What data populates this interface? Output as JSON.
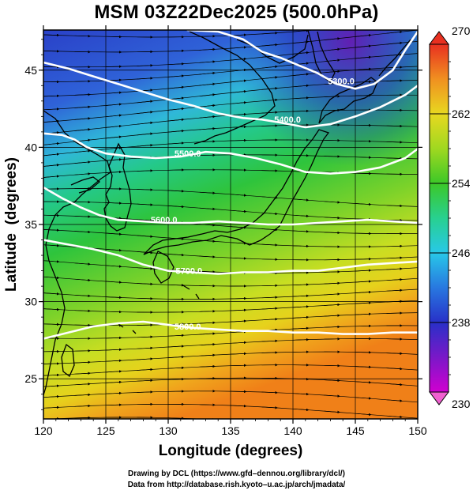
{
  "title": "MSM 03Z22Dec2025 (500.0hPa)",
  "x_axis": {
    "label": "Longitude (degrees)",
    "range": [
      120,
      150
    ],
    "ticks": [
      120,
      125,
      130,
      135,
      140,
      145,
      150
    ]
  },
  "y_axis": {
    "label": "Latitude  (degrees)",
    "range": [
      22.4,
      47.6
    ],
    "ticks": [
      25,
      30,
      35,
      40,
      45
    ]
  },
  "colorbar": {
    "min": 230,
    "max": 270,
    "tick_labels": [
      230,
      238,
      246,
      254,
      262,
      270
    ]
  },
  "contours": [
    {
      "label": "5300.0",
      "points": [
        [
          131.5,
          47.6
        ],
        [
          134,
          47.5
        ],
        [
          136,
          47
        ],
        [
          137.5,
          46.2
        ],
        [
          139,
          45.8
        ],
        [
          140.5,
          45.3
        ],
        [
          142,
          44.8
        ],
        [
          143.5,
          44.1
        ],
        [
          145,
          43.8
        ],
        [
          146.5,
          44.1
        ],
        [
          148,
          45
        ],
        [
          149,
          46.3
        ],
        [
          150,
          47.5
        ]
      ],
      "label_at": [
        142.8,
        44.3
      ]
    },
    {
      "label": "5400.0",
      "points": [
        [
          120,
          45.5
        ],
        [
          122,
          45.1
        ],
        [
          124,
          44.6
        ],
        [
          126,
          44.1
        ],
        [
          128,
          43.6
        ],
        [
          130,
          43.1
        ],
        [
          132,
          42.7
        ],
        [
          134,
          42.2
        ],
        [
          136,
          41.9
        ],
        [
          137.5,
          41.8
        ],
        [
          139,
          41.6
        ],
        [
          141,
          41.3
        ],
        [
          143,
          41.5
        ],
        [
          145,
          42
        ],
        [
          147,
          42.6
        ],
        [
          149,
          43.4
        ],
        [
          150,
          44
        ]
      ],
      "label_at": [
        138.5,
        41.8
      ]
    },
    {
      "label": "5500.0",
      "points": [
        [
          120,
          40.9
        ],
        [
          121.5,
          40.8
        ],
        [
          122.5,
          40.5
        ],
        [
          123.5,
          40
        ],
        [
          125,
          39.6
        ],
        [
          127,
          39.4
        ],
        [
          129,
          39.3
        ],
        [
          131,
          39.4
        ],
        [
          133,
          39.7
        ],
        [
          135,
          39.6
        ],
        [
          137,
          39.3
        ],
        [
          139,
          38.9
        ],
        [
          141,
          38.4
        ],
        [
          143,
          38.3
        ],
        [
          145,
          38.4
        ],
        [
          147,
          38.7
        ],
        [
          149,
          39.3
        ],
        [
          150,
          39.9
        ]
      ],
      "label_at": [
        130.5,
        39.6
      ]
    },
    {
      "label": "5600.0",
      "points": [
        [
          120,
          37.4
        ],
        [
          121.5,
          36.7
        ],
        [
          123,
          36.1
        ],
        [
          124.5,
          35.6
        ],
        [
          126,
          35.3
        ],
        [
          128,
          35.2
        ],
        [
          130,
          35.1
        ],
        [
          132,
          35.1
        ],
        [
          134,
          35.2
        ],
        [
          136,
          35.1
        ],
        [
          138,
          35
        ],
        [
          140,
          35
        ],
        [
          142,
          35.1
        ],
        [
          144,
          35.2
        ],
        [
          146,
          35.3
        ],
        [
          148,
          35.2
        ],
        [
          150,
          35.1
        ]
      ],
      "label_at": [
        128.6,
        35.3
      ]
    },
    {
      "label": "5700.0",
      "points": [
        [
          120,
          34
        ],
        [
          122,
          33.7
        ],
        [
          124,
          33.4
        ],
        [
          126,
          33
        ],
        [
          128,
          32.4
        ],
        [
          130,
          32
        ],
        [
          132,
          31.9
        ],
        [
          134,
          31.8
        ],
        [
          136,
          31.9
        ],
        [
          138,
          31.9
        ],
        [
          140,
          32
        ],
        [
          142,
          32
        ],
        [
          144,
          32.2
        ],
        [
          146,
          32.4
        ],
        [
          148,
          32.5
        ],
        [
          150,
          32.6
        ]
      ],
      "label_at": [
        130.6,
        32.0
      ]
    },
    {
      "label": "5800.0",
      "points": [
        [
          120,
          27.6
        ],
        [
          122,
          28
        ],
        [
          124,
          28.4
        ],
        [
          126,
          28.6
        ],
        [
          128,
          28.7
        ],
        [
          130,
          28.5
        ],
        [
          132,
          28.3
        ],
        [
          134,
          28.2
        ],
        [
          136,
          28.1
        ],
        [
          138,
          28.1
        ],
        [
          140,
          28
        ],
        [
          142,
          28
        ],
        [
          144,
          27.9
        ],
        [
          146,
          27.9
        ],
        [
          148,
          28
        ],
        [
          150,
          28
        ]
      ],
      "label_at": [
        130.5,
        28.4
      ]
    }
  ],
  "credits": {
    "line1": "Drawing by DCL (https://www.gfd–dennou.org/library/dcl/)",
    "line2": "Data from http://database.rish.kyoto–u.ac.jp/arch/jmadata/"
  }
}
